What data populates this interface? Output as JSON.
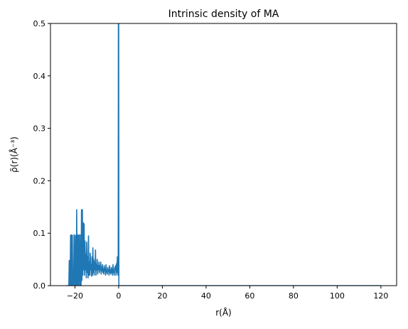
{
  "chart_data": {
    "type": "line",
    "title": "Intrinsic density of MA",
    "xlabel": "r(Å)",
    "ylabel": "ρ̃(r)(Å⁻³)",
    "xlim": [
      -31.2,
      127.2
    ],
    "ylim": [
      0.0,
      0.5
    ],
    "xticks": [
      -20,
      0,
      20,
      40,
      60,
      80,
      100,
      120
    ],
    "yticks": [
      0.0,
      0.1,
      0.2,
      0.3,
      0.4,
      0.5
    ],
    "xtick_labels": [
      "−20",
      "0",
      "20",
      "40",
      "60",
      "80",
      "100",
      "120"
    ],
    "ytick_labels": [
      "0.0",
      "0.1",
      "0.2",
      "0.3",
      "0.4",
      "0.5"
    ],
    "grid": false,
    "line_color": "#1f77b4",
    "series": [
      {
        "x": [
          -24.0,
          -22.8,
          -22.6,
          -22.4,
          -22.2,
          -22.0,
          -21.8,
          -21.6,
          -21.4,
          -21.2,
          -21.0,
          -20.8,
          -20.6,
          -20.4,
          -20.2,
          -20.0,
          -19.8,
          -19.6,
          -19.4,
          -19.2,
          -19.0,
          -18.8,
          -18.6,
          -18.4,
          -18.2,
          -18.0,
          -17.8,
          -17.6,
          -17.4,
          -17.2,
          -17.0,
          -16.8,
          -16.6,
          -16.4,
          -16.2,
          -16.0,
          -15.8,
          -15.6,
          -15.4,
          -15.2,
          -15.0,
          -14.8,
          -14.6,
          -14.4,
          -14.2,
          -14.0,
          -13.8,
          -13.6,
          -13.4,
          -13.2,
          -13.0,
          -12.8,
          -12.6,
          -12.4,
          -12.2,
          -12.0,
          -11.8,
          -11.6,
          -11.4,
          -11.2,
          -11.0,
          -10.8,
          -10.6,
          -10.4,
          -10.2,
          -10.0,
          -9.8,
          -9.6,
          -9.4,
          -9.2,
          -9.0,
          -8.8,
          -8.6,
          -8.4,
          -8.2,
          -8.0,
          -7.8,
          -7.6,
          -7.4,
          -7.2,
          -7.0,
          -6.8,
          -6.6,
          -6.4,
          -6.2,
          -6.0,
          -5.8,
          -5.6,
          -5.4,
          -5.2,
          -5.0,
          -4.8,
          -4.6,
          -4.4,
          -4.2,
          -4.0,
          -3.8,
          -3.6,
          -3.4,
          -3.2,
          -3.0,
          -2.8,
          -2.6,
          -2.4,
          -2.2,
          -2.0,
          -1.8,
          -1.6,
          -1.4,
          -1.2,
          -1.0,
          -0.8,
          -0.6,
          -0.4,
          -0.3,
          -0.2,
          -0.1,
          0.0,
          0.1,
          0.3,
          0.5,
          120.0
        ],
        "y": [
          0.0,
          0.0,
          0.048,
          0.0,
          0.0,
          0.096,
          0.0,
          0.097,
          0.0,
          0.096,
          0.0,
          0.0,
          0.0,
          0.097,
          0.02,
          0.0,
          0.096,
          0.0,
          0.0,
          0.145,
          0.0,
          0.097,
          0.0,
          0.096,
          0.0,
          0.097,
          0.02,
          0.0,
          0.097,
          0.0,
          0.145,
          0.01,
          0.145,
          0.02,
          0.12,
          0.03,
          0.118,
          0.02,
          0.085,
          0.03,
          0.06,
          0.015,
          0.083,
          0.025,
          0.055,
          0.015,
          0.095,
          0.02,
          0.045,
          0.02,
          0.062,
          0.03,
          0.04,
          0.018,
          0.055,
          0.02,
          0.072,
          0.025,
          0.05,
          0.02,
          0.045,
          0.03,
          0.068,
          0.02,
          0.04,
          0.03,
          0.05,
          0.022,
          0.038,
          0.03,
          0.045,
          0.025,
          0.038,
          0.03,
          0.045,
          0.022,
          0.035,
          0.028,
          0.04,
          0.025,
          0.032,
          0.022,
          0.038,
          0.028,
          0.033,
          0.02,
          0.04,
          0.025,
          0.03,
          0.022,
          0.035,
          0.028,
          0.03,
          0.02,
          0.038,
          0.025,
          0.03,
          0.022,
          0.035,
          0.025,
          0.032,
          0.02,
          0.04,
          0.025,
          0.03,
          0.02,
          0.035,
          0.03,
          0.038,
          0.02,
          0.042,
          0.025,
          0.055,
          0.03,
          0.02,
          0.05,
          0.6,
          0.6,
          0.0,
          0.0,
          0.0,
          0.0
        ]
      }
    ]
  }
}
